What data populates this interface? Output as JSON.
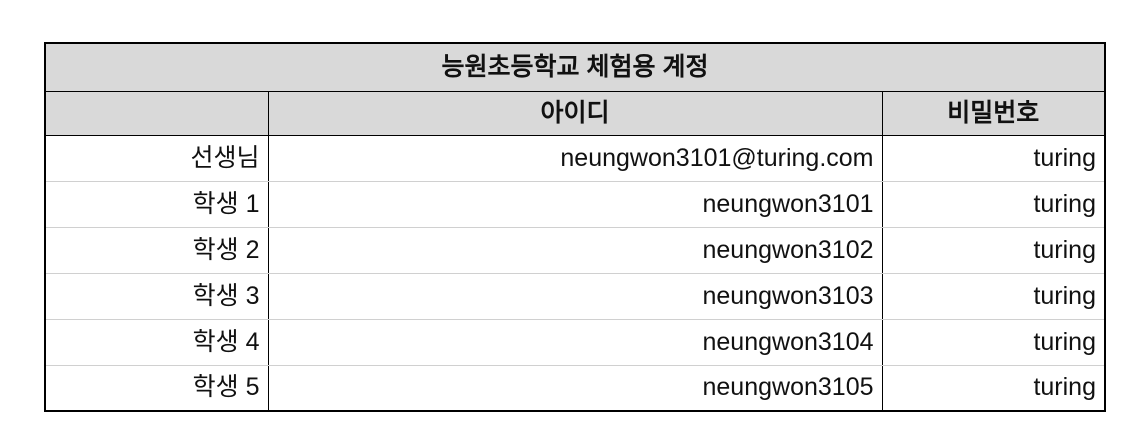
{
  "title": "능원초등학교 체험용 계정",
  "headers": {
    "col1": "",
    "col2": "아이디",
    "col3": "비밀번호"
  },
  "rows": [
    {
      "label": "선생님",
      "id": "neungwon3101@turing.com",
      "password": "turing"
    },
    {
      "label": "학생 1",
      "id": "neungwon3101",
      "password": "turing"
    },
    {
      "label": "학생 2",
      "id": "neungwon3102",
      "password": "turing"
    },
    {
      "label": "학생 3",
      "id": "neungwon3103",
      "password": "turing"
    },
    {
      "label": "학생 4",
      "id": "neungwon3104",
      "password": "turing"
    },
    {
      "label": "학생 5",
      "id": "neungwon3105",
      "password": "turing"
    }
  ]
}
